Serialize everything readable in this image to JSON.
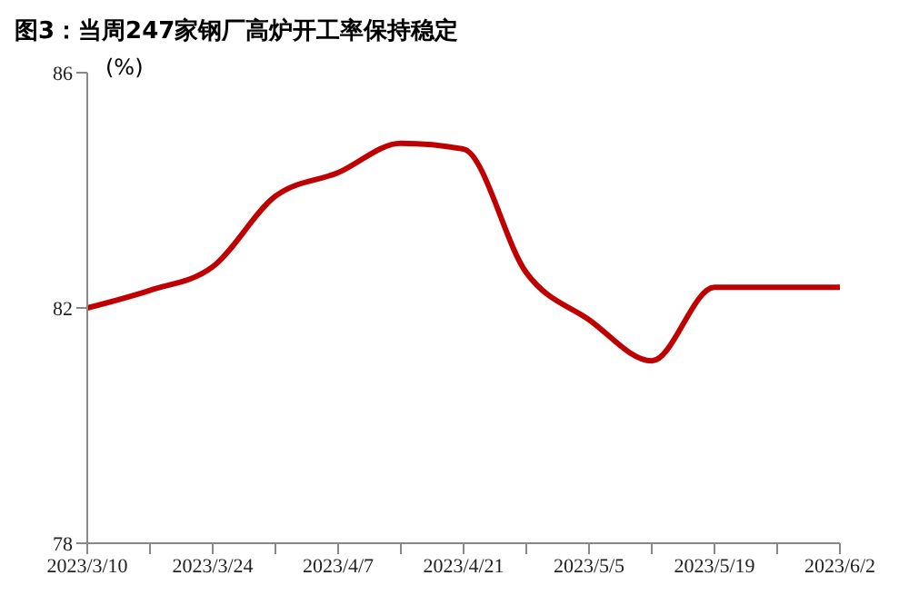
{
  "chart_data": {
    "type": "line",
    "title": "图3：当周247家钢厂高炉开工率保持稳定",
    "ylabel": "(%)",
    "categories": [
      "2023/3/10",
      null,
      "2023/3/24",
      null,
      "2023/4/7",
      null,
      "2023/4/21",
      null,
      "2023/5/5",
      null,
      "2023/5/19",
      null,
      "2023/6/2"
    ],
    "series": [
      {
        "color": "#c00000",
        "values": [
          82.0,
          82.3,
          82.7,
          83.9,
          84.3,
          84.8,
          84.7,
          82.6,
          81.8,
          81.1,
          82.35,
          82.35,
          82.35
        ]
      }
    ],
    "ylim": [
      78,
      86
    ],
    "yticks": [
      78,
      82,
      86
    ],
    "grid": false,
    "marker": "none",
    "line_style": "solid"
  }
}
